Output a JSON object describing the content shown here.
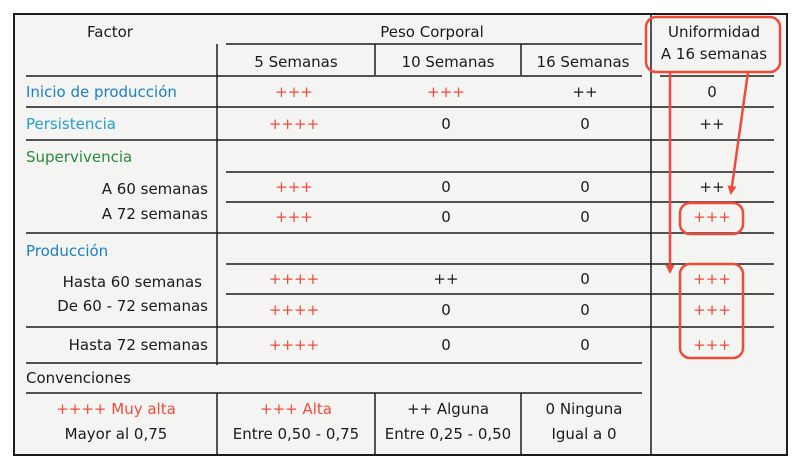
{
  "colors": {
    "background": "#f4f4f3",
    "border": "#1c1c1c",
    "blue": "#1b7fc4",
    "cyan": "#20a0cf",
    "green": "#2a8a3a",
    "red": "#ef4b3a",
    "dark": "#1a1a1a"
  },
  "headers": {
    "factor": "Factor",
    "peso_corporal": "Peso Corporal",
    "uniformidad_line1": "Uniformidad",
    "uniformidad_line2": "A 16 semanas",
    "semanas": [
      "5 Semanas",
      "10 Semanas",
      "16 Semanas"
    ]
  },
  "rows": {
    "inicio": {
      "label": "Inicio de producción",
      "values": [
        "+++",
        "+++",
        "++",
        "0"
      ]
    },
    "persistencia": {
      "label": "Persistencia",
      "values": [
        "++++",
        "0",
        "0",
        "++"
      ]
    },
    "supervivencia": {
      "label": "Supervivencia"
    },
    "sup_60": {
      "label": "A 60 semanas",
      "values": [
        "+++",
        "0",
        "0",
        "++"
      ]
    },
    "sup_72": {
      "label": "A 72 semanas",
      "values": [
        "+++",
        "0",
        "0",
        "+++"
      ]
    },
    "produccion": {
      "label": "Producción"
    },
    "prod_h60": {
      "label": "Hasta 60 semanas",
      "values": [
        "++++",
        "++",
        "0",
        "+++"
      ]
    },
    "prod_60_72": {
      "label": "De 60 - 72 semanas",
      "values": [
        "++++",
        "0",
        "0",
        "+++"
      ]
    },
    "prod_h72": {
      "label": "Hasta 72 semanas",
      "values": [
        "++++",
        "0",
        "0",
        "+++"
      ]
    }
  },
  "convenciones": {
    "title": "Convenciones",
    "items": [
      {
        "symbol": "++++ Muy alta",
        "range": "Mayor al 0,75"
      },
      {
        "symbol": "+++ Alta",
        "range": "Entre 0,50 - 0,75"
      },
      {
        "symbol": "++ Alguna",
        "range": "Entre 0,25 - 0,50"
      },
      {
        "symbol": "0 Ninguna",
        "range": "Igual a 0"
      }
    ]
  }
}
